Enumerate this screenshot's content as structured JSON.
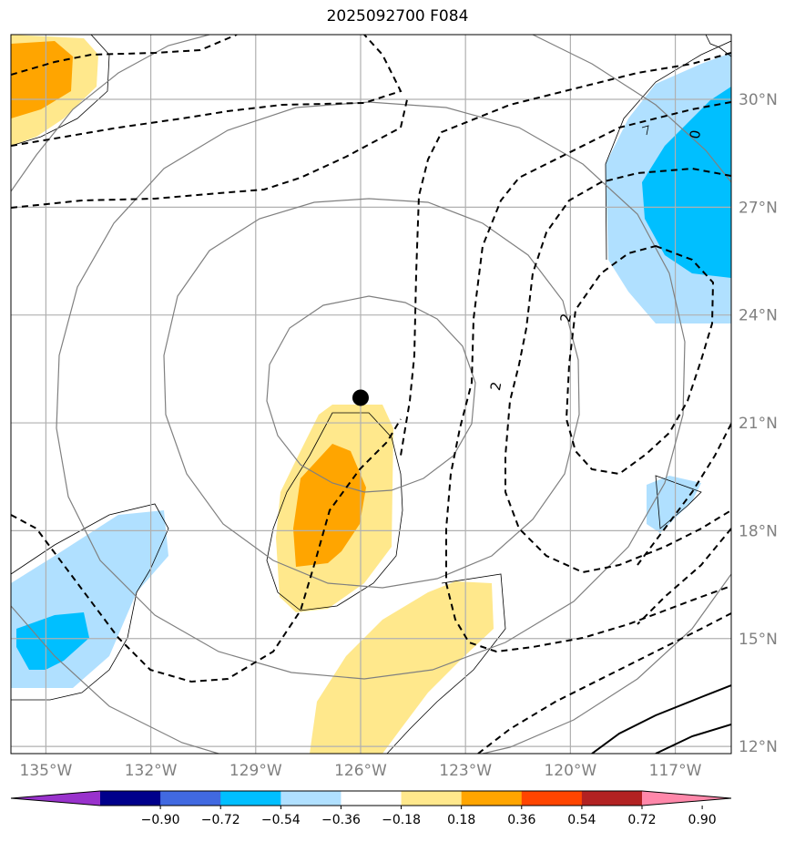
{
  "title": "2025092700 F084",
  "map": {
    "lon_range": [
      -136,
      -115.4
    ],
    "lat_range": [
      11.8,
      31.8
    ],
    "lon_ticks": [
      {
        "value": -135,
        "label": "135°W"
      },
      {
        "value": -132,
        "label": "132°W"
      },
      {
        "value": -129,
        "label": "129°W"
      },
      {
        "value": -126,
        "label": "126°W"
      },
      {
        "value": -123,
        "label": "123°W"
      },
      {
        "value": -120,
        "label": "120°W"
      },
      {
        "value": -117,
        "label": "117°W"
      }
    ],
    "lat_ticks": [
      {
        "value": 12,
        "label": "12°N"
      },
      {
        "value": 15,
        "label": "15°N"
      },
      {
        "value": 18,
        "label": "18°N"
      },
      {
        "value": 21,
        "label": "21°N"
      },
      {
        "value": 24,
        "label": "24°N"
      },
      {
        "value": 27,
        "label": "27°N"
      },
      {
        "value": 30,
        "label": "30°N"
      }
    ],
    "storm_center": {
      "lon": -126.0,
      "lat": 21.7
    },
    "contour_labels": [
      {
        "text": "2",
        "lon": -122.0,
        "lat": 22.0
      },
      {
        "text": "2",
        "lon": -120.0,
        "lat": 23.9
      },
      {
        "text": "0",
        "lon": -116.3,
        "lat": 29.0
      }
    ]
  },
  "colorbar": {
    "colors": [
      "#9932cc",
      "#00008b",
      "#4169e1",
      "#00bfff",
      "#b0e0ff",
      "#ffffff",
      "#ffe88c",
      "#ffa500",
      "#ff4500",
      "#b22222",
      "#ff88aa"
    ],
    "tick_labels": [
      "−0.90",
      "−0.72",
      "−0.54",
      "−0.36",
      "−0.18",
      "0.18",
      "0.36",
      "0.54",
      "0.72",
      "0.90"
    ]
  }
}
